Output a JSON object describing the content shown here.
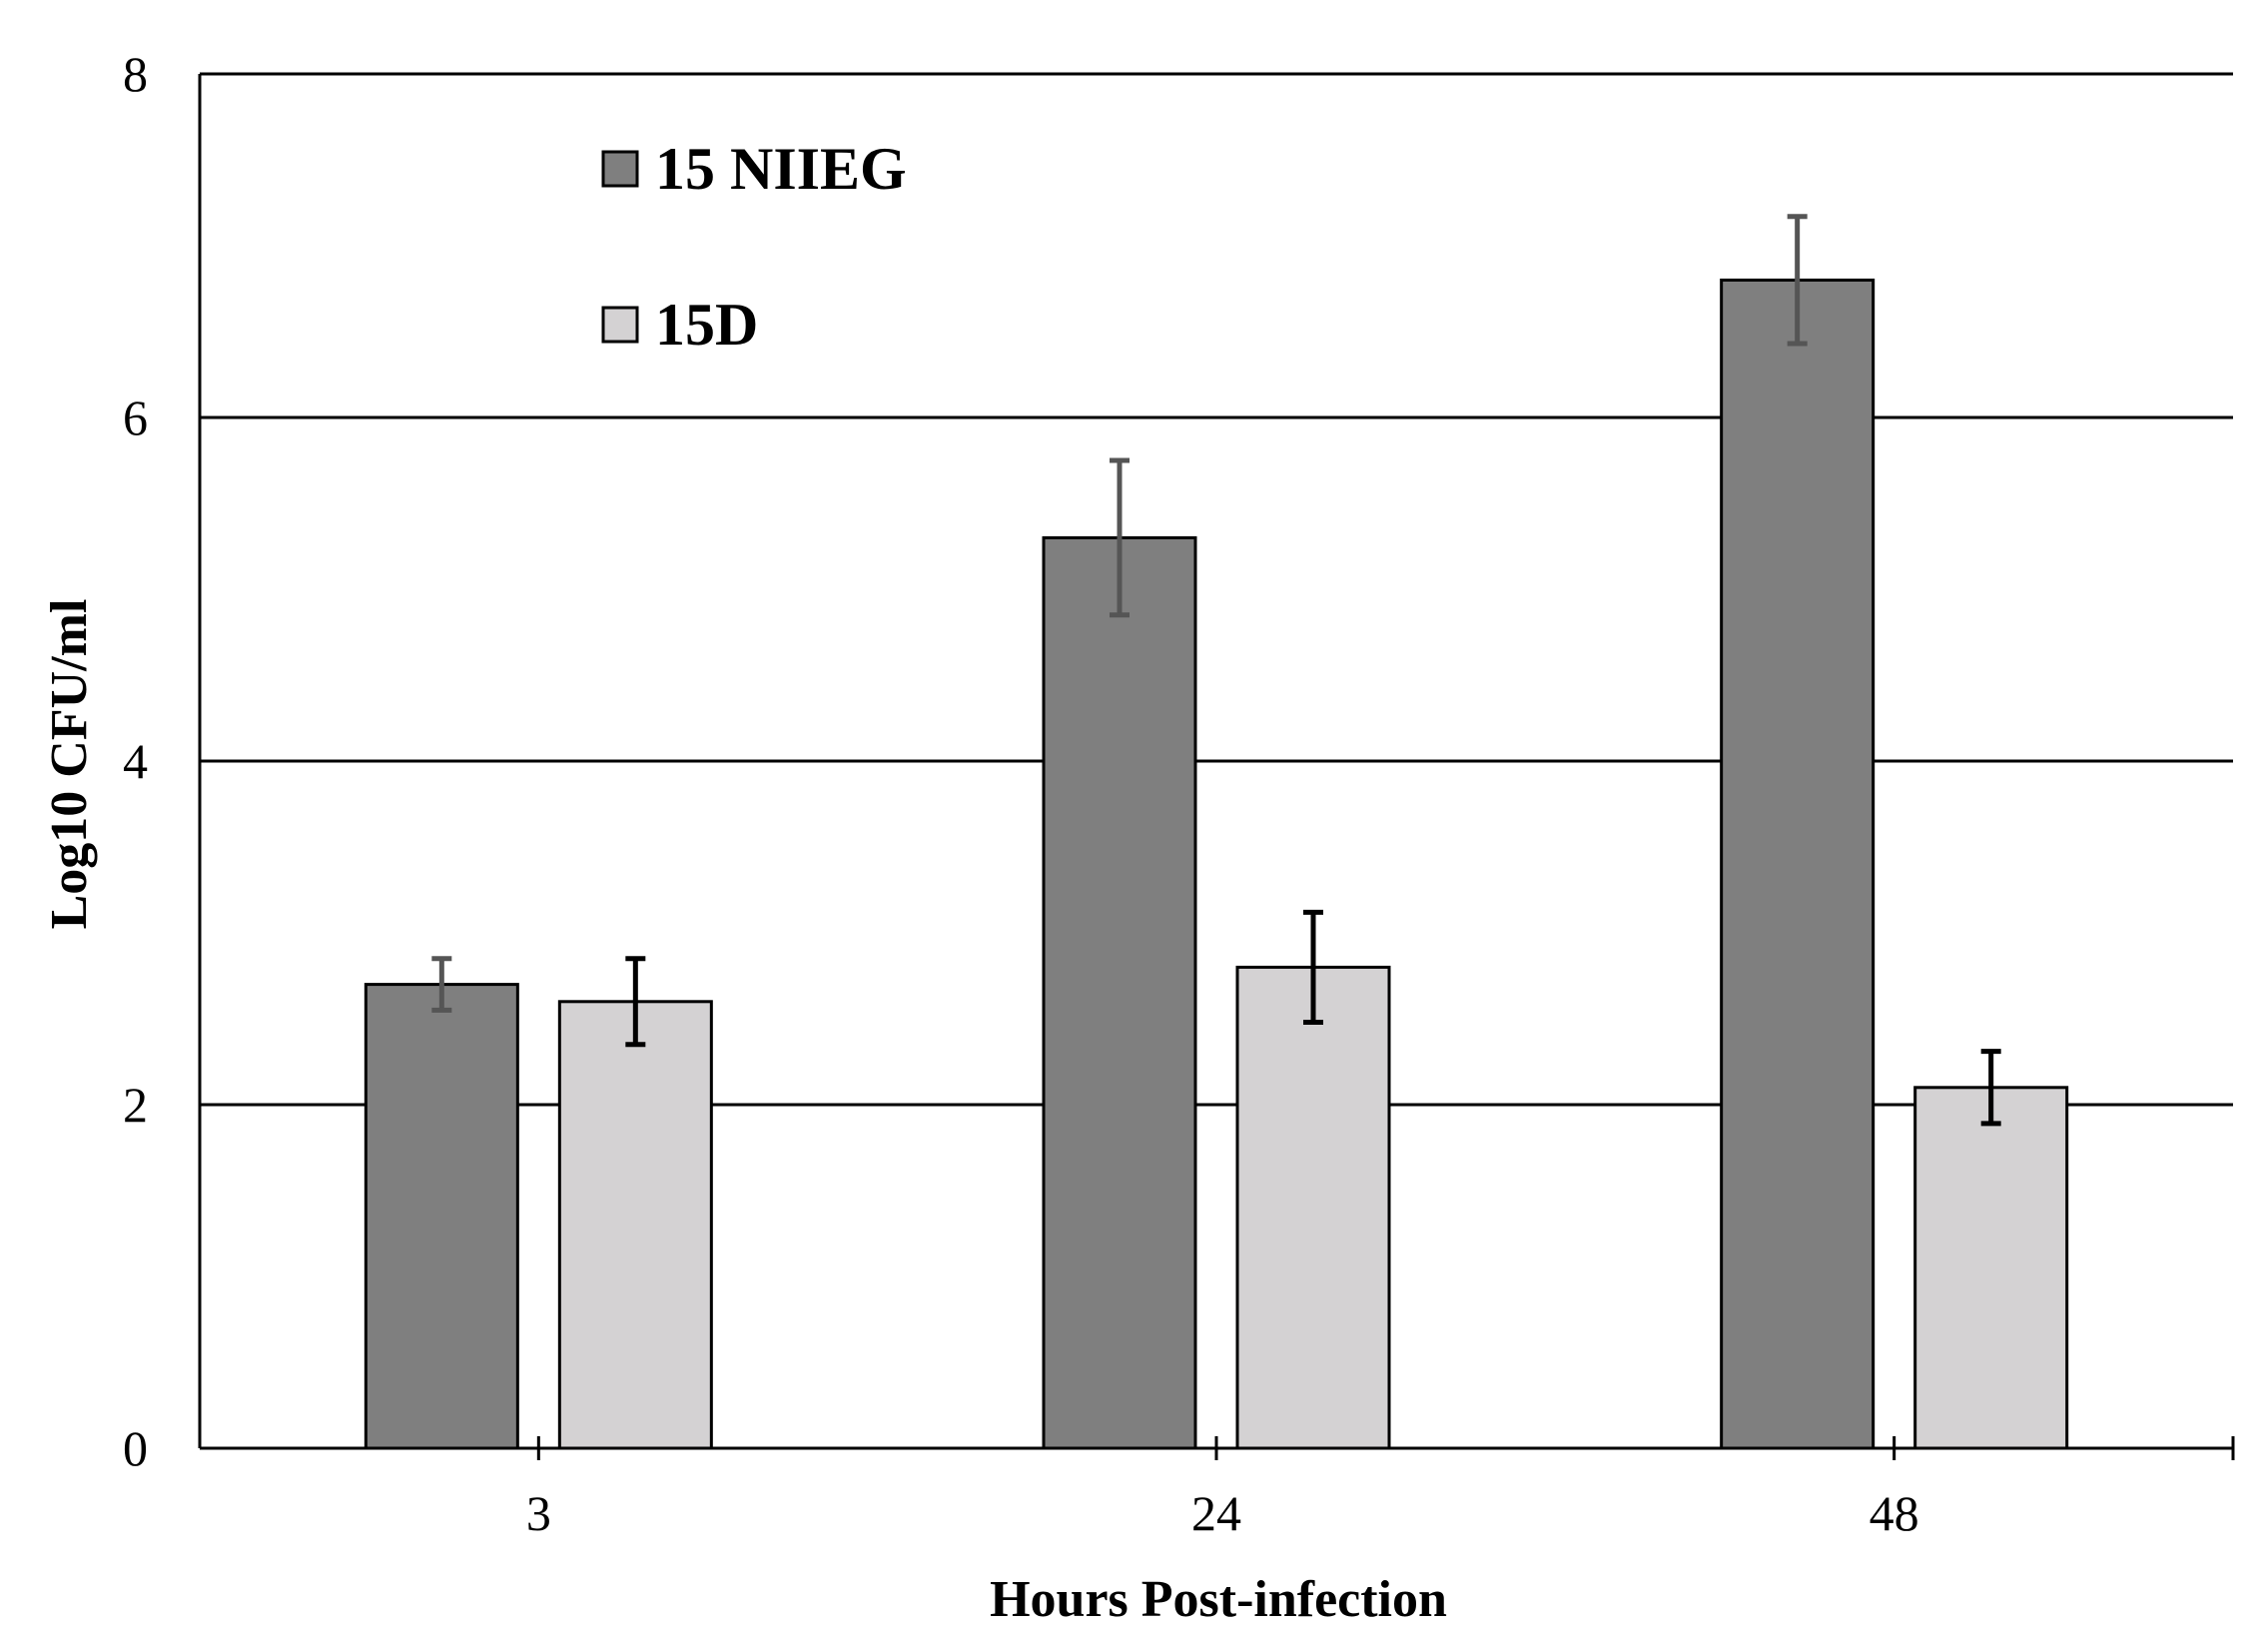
{
  "chart_data": {
    "type": "bar",
    "title": "",
    "xlabel": "Hours Post-infection",
    "ylabel": "Log10 CFU/ml",
    "ylim": [
      0,
      8
    ],
    "yticks": [
      "0",
      "2",
      "4",
      "6",
      "8"
    ],
    "categories": [
      "3",
      "24",
      "48"
    ],
    "grid": "horizontal major gridlines",
    "legend_position": "top-left",
    "series": [
      {
        "name": "15 NIIEG",
        "color": "#7f7f7f",
        "error_color": "#555555",
        "values": [
          2.7,
          5.3,
          6.8
        ],
        "errors": [
          0.15,
          0.45,
          0.37
        ]
      },
      {
        "name": "15D",
        "color": "#d4d2d3",
        "error_color": "#000000",
        "values": [
          2.6,
          2.8,
          2.1
        ],
        "errors": [
          0.25,
          0.32,
          0.21
        ]
      }
    ]
  }
}
